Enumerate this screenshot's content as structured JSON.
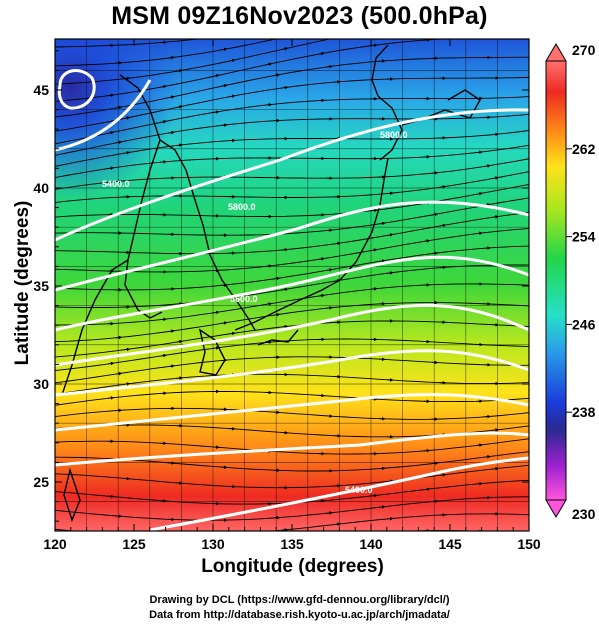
{
  "title": "MSM 09Z16Nov2023 (500.0hPa)",
  "x_axis": {
    "label": "Longitude (degrees)",
    "range": [
      120,
      150
    ],
    "ticks": [
      "120",
      "125",
      "130",
      "135",
      "140",
      "145",
      "150"
    ]
  },
  "y_axis": {
    "label": "Latitude  (degrees)",
    "range": [
      22.5,
      47.6
    ],
    "ticks": [
      "25",
      "30",
      "35",
      "40",
      "45"
    ]
  },
  "colorbar": {
    "range": [
      230,
      270
    ],
    "ticks": [
      "230",
      "238",
      "246",
      "254",
      "262",
      "270"
    ],
    "colors": [
      "#ff55dd",
      "#9b1fcf",
      "#2a2a90",
      "#1a3bd9",
      "#2a9ee8",
      "#26e0c8",
      "#22d64a",
      "#a8e61e",
      "#ffe21a",
      "#ff8a18",
      "#ee2a22",
      "#ff7070"
    ]
  },
  "contours": {
    "color": "#ffffff",
    "labels": [
      "5400.0",
      "5600.0",
      "5800.0",
      "5800.0",
      "5400.0"
    ]
  },
  "credits": {
    "line1": "Drawing by DCL (https://www.gfd-dennou.org/library/dcl/)",
    "line2": "Data from http://database.rish.kyoto-u.ac.jp/arch/jmadata/"
  }
}
